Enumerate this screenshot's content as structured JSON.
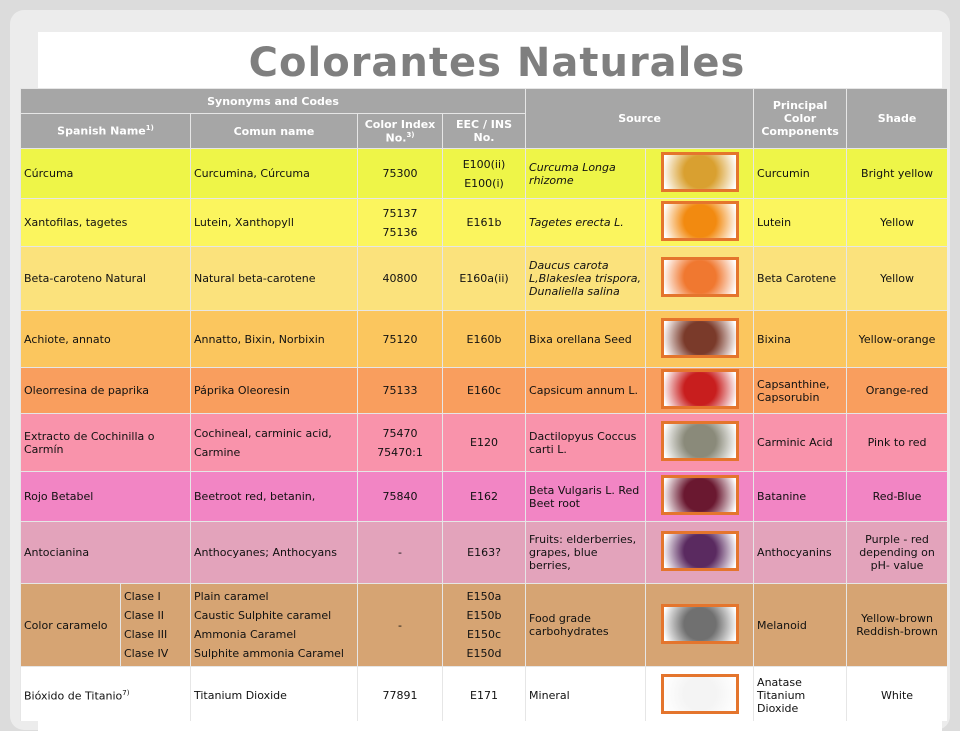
{
  "title": "Colorantes Naturales",
  "table": {
    "group_headers": [
      "Synonyms and Codes",
      "Source",
      "Principal Color Components",
      "Shade"
    ],
    "headers": [
      {
        "text": "Spanish Name",
        "note": "1)"
      },
      {
        "text": "Comun name"
      },
      {
        "text": "Color Index No.",
        "note": "3)"
      },
      {
        "text": "EEC / INS No."
      }
    ],
    "rows": [
      {
        "color": "#eef548",
        "spanish": "Cúrcuma",
        "comun": "Curcumina, Cúrcuma",
        "color_index": "75300",
        "eec": [
          "E100(ii)",
          "E100(i)"
        ],
        "source": "Curcuma Longa rhizome",
        "source_italic": true,
        "components": "Curcumin",
        "shade": "Bright yellow"
      },
      {
        "color": "#fbf55e",
        "spanish": "Xantofilas, tagetes",
        "comun": "Lutein, Xanthopyll",
        "color_index": [
          "75137",
          "75136"
        ],
        "eec": "E161b",
        "source": "Tagetes erecta L.",
        "source_italic": true,
        "components": "Lutein",
        "shade": "Yellow"
      },
      {
        "color": "#fbe27c",
        "spanish": "Beta-caroteno Natural",
        "comun": "Natural beta-carotene",
        "color_index": "40800",
        "eec": "E160a(ii)",
        "source": "Daucus carota L,Blakeslea trispora, Dunaliella salina",
        "source_italic": true,
        "components": "Beta Carotene",
        "shade": "Yellow"
      },
      {
        "color": "#fbc65e",
        "spanish": "Achiote, annato",
        "comun": "Annatto, Bixin, Norbixin",
        "color_index": "75120",
        "eec": "E160b",
        "source": "Bixa orellana Seed",
        "source_italic": false,
        "components": "Bixina",
        "shade": "Yellow-orange"
      },
      {
        "color": "#f99e5e",
        "spanish": "Oleorresina de paprika",
        "comun": "Páprika Oleoresin",
        "color_index": "75133",
        "eec": "E160c",
        "source": "Capsicum annum L.",
        "source_italic": false,
        "components": "Capsanthine, Capsorubin",
        "shade": "Orange-red"
      },
      {
        "color": "#f993ab",
        "spanish": "Extracto de Cochinilla o Carmín",
        "comun": [
          "Cochineal, carminic acid,",
          "Carmine"
        ],
        "color_index": [
          "75470",
          "75470:1"
        ],
        "eec": "E120",
        "source": "Dactilopyus Coccus carti L.",
        "source_italic": false,
        "components": "Carminic Acid",
        "shade": "Pink to red"
      },
      {
        "color": "#f285c4",
        "spanish": "Rojo Betabel",
        "comun": "Beetroot red, betanin,",
        "color_index": "75840",
        "eec": "E162",
        "source": "Beta Vulgaris L. Red Beet root",
        "source_italic": false,
        "components": "Batanine",
        "shade": "Red-Blue"
      },
      {
        "color": "#e3a3bb",
        "spanish": "Antocianina",
        "comun": "Anthocyanes; Anthocyans",
        "color_index": "-",
        "eec": "E163?",
        "source": "Fruits: elderberries, grapes, blue berries,",
        "source_italic": false,
        "components": "Anthocyanins",
        "shade": "Purple - red depending on pH- value"
      },
      {
        "color": "#d6a473",
        "spanish": "Color caramelo",
        "classes": [
          "Clase I",
          "Clase II",
          "Clase III",
          "Clase IV"
        ],
        "comun": [
          "Plain caramel",
          "Caustic Sulphite caramel",
          "Ammonia Caramel",
          "Sulphite ammonia Caramel"
        ],
        "color_index": "-",
        "eec": [
          "E150a",
          "E150b",
          "E150c",
          "E150d"
        ],
        "source": "Food grade carbohydrates",
        "source_italic": false,
        "components": "Melanoid",
        "shade": "Yellow-brown Reddish-brown"
      },
      {
        "color": "#ffffff",
        "spanish": "Bióxido de Titanio",
        "spanish_note": "7)",
        "comun": "Titanium Dioxide",
        "color_index": "77891",
        "eec": "E171",
        "source": "Mineral",
        "source_italic": false,
        "components": "Anatase Titanium Dioxide",
        "shade": "White"
      }
    ]
  }
}
